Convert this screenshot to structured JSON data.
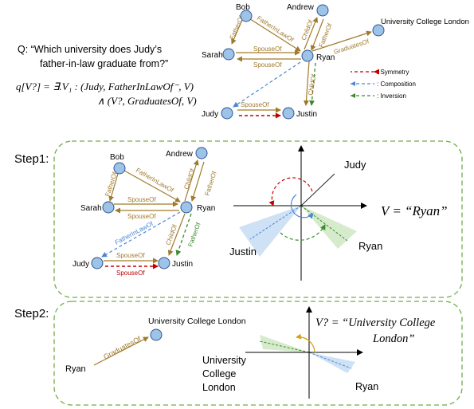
{
  "question": {
    "line1": "Q: “Which university does Judy’s",
    "line2": "father-in-law graduate from?”",
    "formula1": "q[V?] = ∃.V₁ : (Judy, FatherInLawOf⁻, V)",
    "formula2": "∧ (V?, GraduatesOf, V)"
  },
  "top_graph": {
    "nodes": {
      "bob": "Bob",
      "andrew": "Andrew",
      "sarah": "Sarah",
      "ryan": "Ryan",
      "judy": "Judy",
      "justin": "Justin",
      "ucl": "University College London"
    },
    "edges": {
      "father_of_bs": "FatherOf",
      "father_in_law_of": "FatherInLawOf",
      "child_of": "ChildOf",
      "father_of_ar": "FatherOf",
      "graduates_of": "GraduatesOf",
      "spouse_of_a": "SpouseOf",
      "spouse_of_b": "SpouseOf",
      "child_of_rj": "ChildOf",
      "spouse_of_jj": "SpouseOf"
    }
  },
  "legend": {
    "symmetry": ": Symmetry",
    "composition": ": Composition",
    "inversion": ": Inversion"
  },
  "step1": {
    "label": "Step1:",
    "nodes": {
      "bob": "Bob",
      "andrew": "Andrew",
      "sarah": "Sarah",
      "ryan": "Ryan",
      "judy": "Judy",
      "justin": "Justin"
    },
    "edges": {
      "father_of_bs": "FatherOf",
      "father_in_law_of": "FatherInLawOf",
      "child_of": "ChildOf",
      "father_of_ar": "FatherOf",
      "spouse_of_a": "SpouseOf",
      "spouse_of_b": "SpouseOf",
      "father_in_law_of_rj": "FatherInLawOf",
      "child_of_rj": "ChildOf",
      "father_of_jr": "FatherOf",
      "spouse_of_jj": "SpouseOf",
      "spouse_of_red": "SpouseOf"
    },
    "rot_labels": {
      "judy": "Judy",
      "justin": "Justin",
      "ryan": "Ryan"
    },
    "result": "V = “Ryan”"
  },
  "step2": {
    "label": "Step2:",
    "ryan": "Ryan",
    "graduates_of": "GraduatesOf",
    "ucl": "University College London",
    "result_line1": "V? = “University College",
    "result_line2": "London”",
    "rot_ucl_1": "University",
    "rot_ucl_2": "College",
    "rot_ucl_3": "London",
    "rot_ryan": "Ryan"
  },
  "colors": {
    "node": "#9dc3e6",
    "edge": "#a07a2c",
    "symmetry": "#c00000",
    "composition": "#4a86d4",
    "inversion": "#3c8a2e",
    "box": "#70ad47"
  }
}
